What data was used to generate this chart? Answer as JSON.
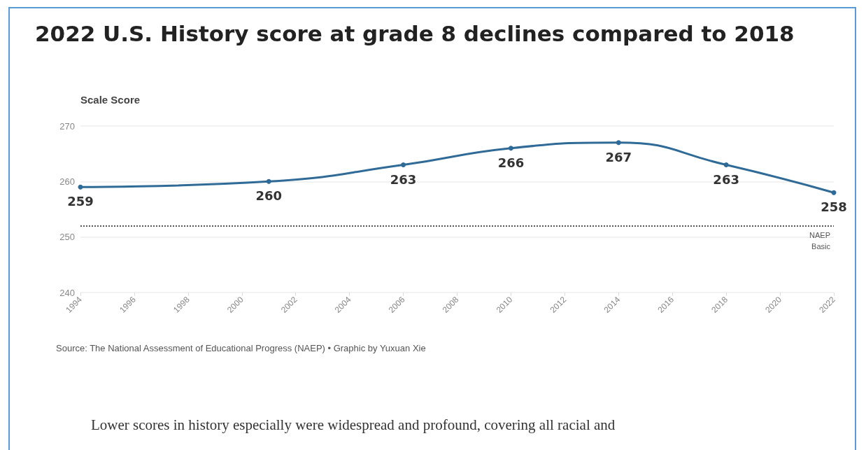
{
  "chart_data": {
    "type": "line",
    "title": "2022 U.S. History score at grade 8 declines compared to 2018",
    "ylabel": "Scale Score",
    "x": [
      1994,
      2001,
      2006,
      2010,
      2014,
      2018,
      2022
    ],
    "series": [
      {
        "color": "#2f6b96",
        "values": [
          259,
          260,
          263,
          266,
          267,
          263,
          258
        ]
      }
    ],
    "data_labels": true,
    "marker": "circle",
    "line_style": "solid",
    "grid": "y",
    "xlim": [
      1994,
      2022
    ],
    "xticks": [
      1994,
      1996,
      1998,
      2000,
      2002,
      2004,
      2006,
      2008,
      2010,
      2012,
      2014,
      2016,
      2018,
      2020,
      2022
    ],
    "ylim": [
      240,
      270
    ],
    "yticks": [
      240,
      250,
      260,
      270
    ],
    "ref_lines": [
      {
        "axis": "y",
        "value": 252,
        "label": "NAEP\nBasic",
        "color": "#555555",
        "line_style": "dotted"
      }
    ],
    "annotations": [
      "Source: The National Assessment of Educational Progress (NAEP) • Graphic by Yuxuan Xie",
      "Lower scores in history especially were widespread and profound, covering all racial and"
    ]
  }
}
